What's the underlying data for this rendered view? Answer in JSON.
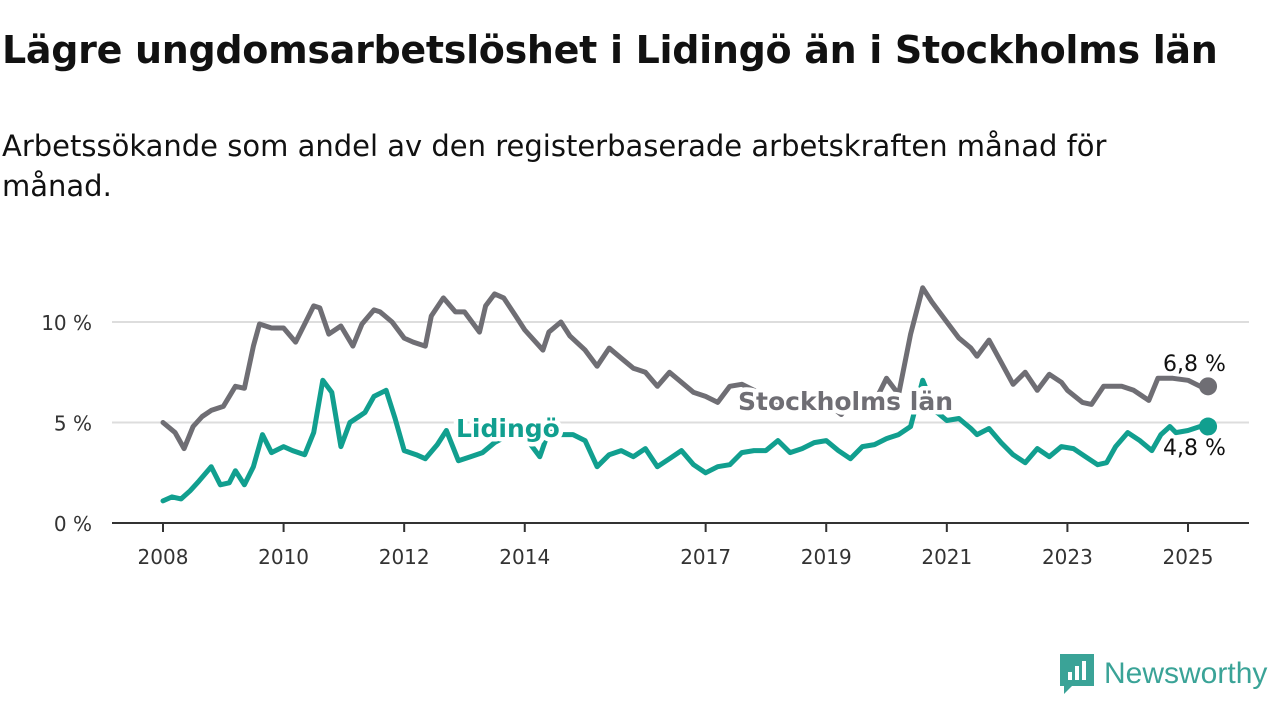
{
  "title": "Lägre ungdomsarbetslöshet i Lidingö än i Stockholms län",
  "subtitle": "Arbetssökande som andel av den registerbaserade arbetskraften månad för månad.",
  "brand": {
    "name": "Newsworthy",
    "icon": "newsworthy-logo-icon"
  },
  "colors": {
    "stockholm": "#6f6e74",
    "lidingo": "#119f8f",
    "grid": "#dddddd",
    "axis": "#333333"
  },
  "chart_data": {
    "type": "line",
    "x_unit": "year",
    "xlim": [
      2007.9,
      2026.0
    ],
    "ylim": [
      0,
      12
    ],
    "y_ticks": [
      0,
      5,
      10
    ],
    "y_tick_labels": [
      "0 %",
      "5 %",
      "10 %"
    ],
    "x_ticks": [
      2008,
      2010,
      2012,
      2014,
      2017,
      2019,
      2021,
      2023,
      2025
    ],
    "x_tick_labels": [
      "2008",
      "2010",
      "2012",
      "2014",
      "2017",
      "2019",
      "2021",
      "2023",
      "2025"
    ],
    "grid": "horizontal",
    "series": [
      {
        "name": "Stockholms län",
        "end_label": "6,8 %",
        "x": [
          2008.0,
          2008.2,
          2008.35,
          2008.5,
          2008.65,
          2008.8,
          2009.0,
          2009.2,
          2009.35,
          2009.5,
          2009.6,
          2009.8,
          2010.0,
          2010.2,
          2010.4,
          2010.5,
          2010.6,
          2010.75,
          2010.95,
          2011.15,
          2011.3,
          2011.5,
          2011.6,
          2011.8,
          2012.0,
          2012.15,
          2012.35,
          2012.45,
          2012.65,
          2012.85,
          2013.0,
          2013.25,
          2013.35,
          2013.5,
          2013.65,
          2013.85,
          2014.0,
          2014.3,
          2014.4,
          2014.6,
          2014.75,
          2015.0,
          2015.2,
          2015.4,
          2015.6,
          2015.8,
          2016.0,
          2016.2,
          2016.4,
          2016.6,
          2016.8,
          2017.0,
          2017.2,
          2017.4,
          2017.6,
          2017.8,
          2018.0,
          2018.25,
          2018.5,
          2018.75,
          2019.0,
          2019.25,
          2019.5,
          2019.8,
          2020.0,
          2020.2,
          2020.4,
          2020.6,
          2020.75,
          2021.0,
          2021.2,
          2021.4,
          2021.5,
          2021.7,
          2021.9,
          2022.1,
          2022.3,
          2022.5,
          2022.7,
          2022.9,
          2023.0,
          2023.25,
          2023.4,
          2023.6,
          2023.9,
          2024.1,
          2024.35,
          2024.5,
          2024.75,
          2025.0,
          2025.2
        ],
        "y": [
          5.0,
          4.5,
          3.7,
          4.8,
          5.3,
          5.6,
          5.8,
          6.8,
          6.7,
          8.8,
          9.9,
          9.7,
          9.7,
          9.0,
          10.2,
          10.8,
          10.7,
          9.4,
          9.8,
          8.8,
          9.9,
          10.6,
          10.5,
          10.0,
          9.2,
          9.0,
          8.8,
          10.3,
          11.2,
          10.5,
          10.5,
          9.5,
          10.8,
          11.4,
          11.2,
          10.3,
          9.6,
          8.6,
          9.5,
          10.0,
          9.3,
          8.6,
          7.8,
          8.7,
          8.2,
          7.7,
          7.5,
          6.8,
          7.5,
          7.0,
          6.5,
          6.3,
          6.0,
          6.8,
          6.9,
          6.6,
          6.3,
          5.9,
          6.2,
          6.3,
          6.0,
          5.4,
          6.4,
          6.0,
          7.2,
          6.4,
          9.4,
          11.7,
          11.0,
          10.0,
          9.2,
          8.7,
          8.3,
          9.1,
          8.0,
          6.9,
          7.5,
          6.6,
          7.4,
          7.0,
          6.6,
          6.0,
          5.9,
          6.8,
          6.8,
          6.6,
          6.1,
          7.2,
          7.2,
          7.1,
          6.8
        ]
      },
      {
        "name": "Lidingö",
        "end_label": "4,8 %",
        "x": [
          2008.0,
          2008.15,
          2008.3,
          2008.45,
          2008.6,
          2008.8,
          2008.95,
          2009.1,
          2009.2,
          2009.35,
          2009.5,
          2009.65,
          2009.8,
          2010.0,
          2010.15,
          2010.35,
          2010.5,
          2010.65,
          2010.8,
          2010.95,
          2011.1,
          2011.25,
          2011.35,
          2011.5,
          2011.7,
          2011.85,
          2012.0,
          2012.2,
          2012.35,
          2012.55,
          2012.7,
          2012.9,
          2013.1,
          2013.3,
          2013.5,
          2013.75,
          2014.0,
          2014.25,
          2014.4,
          2014.6,
          2014.8,
          2015.0,
          2015.2,
          2015.4,
          2015.6,
          2015.8,
          2016.0,
          2016.2,
          2016.4,
          2016.6,
          2016.8,
          2017.0,
          2017.2,
          2017.4,
          2017.6,
          2017.8,
          2018.0,
          2018.2,
          2018.4,
          2018.6,
          2018.8,
          2019.0,
          2019.2,
          2019.4,
          2019.6,
          2019.8,
          2020.0,
          2020.2,
          2020.4,
          2020.6,
          2020.8,
          2021.0,
          2021.2,
          2021.4,
          2021.5,
          2021.7,
          2021.9,
          2022.1,
          2022.3,
          2022.5,
          2022.7,
          2022.9,
          2023.1,
          2023.3,
          2023.5,
          2023.65,
          2023.8,
          2024.0,
          2024.2,
          2024.4,
          2024.55,
          2024.7,
          2024.8,
          2025.0,
          2025.2
        ],
        "y": [
          1.1,
          1.3,
          1.2,
          1.6,
          2.1,
          2.8,
          1.9,
          2.0,
          2.6,
          1.9,
          2.8,
          4.4,
          3.5,
          3.8,
          3.6,
          3.4,
          4.5,
          7.1,
          6.5,
          3.8,
          5.0,
          5.3,
          5.5,
          6.3,
          6.6,
          5.2,
          3.6,
          3.4,
          3.2,
          3.9,
          4.6,
          3.1,
          3.3,
          3.5,
          4.0,
          4.4,
          4.3,
          3.3,
          4.6,
          4.4,
          4.4,
          4.1,
          2.8,
          3.4,
          3.6,
          3.3,
          3.7,
          2.8,
          3.2,
          3.6,
          2.9,
          2.5,
          2.8,
          2.9,
          3.5,
          3.6,
          3.6,
          4.1,
          3.5,
          3.7,
          4.0,
          4.1,
          3.6,
          3.2,
          3.8,
          3.9,
          4.2,
          4.4,
          4.8,
          7.1,
          5.6,
          5.1,
          5.2,
          4.7,
          4.4,
          4.7,
          4.0,
          3.4,
          3.0,
          3.7,
          3.3,
          3.8,
          3.7,
          3.3,
          2.9,
          3.0,
          3.8,
          4.5,
          4.1,
          3.6,
          4.4,
          4.8,
          4.5,
          4.6,
          4.8
        ]
      }
    ]
  }
}
